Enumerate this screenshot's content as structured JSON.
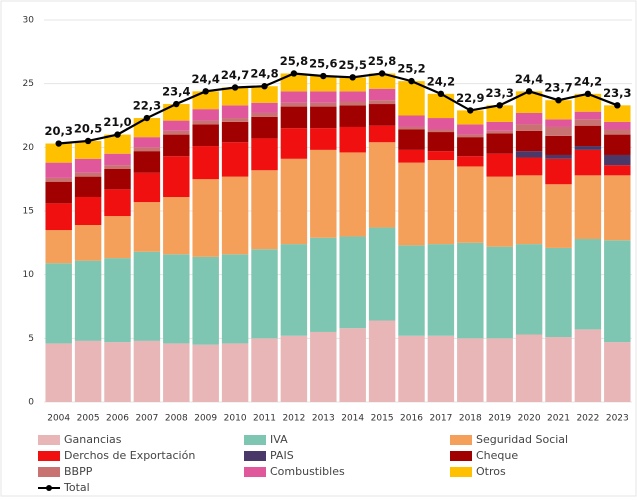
{
  "chart_data": {
    "type": "bar",
    "stacked": true,
    "categories": [
      "2004",
      "2005",
      "2006",
      "2007",
      "2008",
      "2009",
      "2010",
      "2011",
      "2012",
      "2013",
      "2014",
      "2015",
      "2016",
      "2017",
      "2018",
      "2019",
      "2020",
      "2021",
      "2022",
      "2023"
    ],
    "ylim": [
      0,
      30
    ],
    "yticks": [
      0,
      5,
      10,
      15,
      20,
      25,
      30
    ],
    "grid": true,
    "series": [
      {
        "name": "Ganancias",
        "color": "#e8b6b6",
        "values": [
          4.6,
          4.8,
          4.7,
          4.8,
          4.6,
          4.5,
          4.6,
          5.0,
          5.2,
          5.5,
          5.8,
          6.4,
          5.2,
          5.2,
          5.0,
          5.0,
          5.3,
          5.1,
          5.7,
          4.7
        ]
      },
      {
        "name": "IVA",
        "color": "#7fc6b2",
        "values": [
          6.3,
          6.3,
          6.6,
          7.0,
          7.0,
          6.9,
          7.0,
          7.0,
          7.2,
          7.4,
          7.2,
          7.3,
          7.1,
          7.2,
          7.5,
          7.2,
          7.1,
          7.0,
          7.1,
          8.0
        ]
      },
      {
        "name": "Seguridad Social",
        "color": "#f5a05a",
        "values": [
          2.6,
          2.8,
          3.3,
          3.9,
          4.5,
          6.1,
          6.1,
          6.2,
          6.7,
          6.9,
          6.6,
          6.7,
          6.5,
          6.6,
          6.0,
          5.5,
          5.4,
          5.0,
          5.0,
          5.1
        ]
      },
      {
        "name": "Derchos de Exportación",
        "color": "#f01010",
        "values": [
          2.1,
          2.2,
          2.1,
          2.3,
          3.2,
          2.6,
          2.7,
          2.5,
          2.4,
          1.7,
          2.0,
          1.3,
          1.0,
          0.7,
          0.8,
          1.8,
          1.4,
          2.0,
          2.0,
          0.8
        ]
      },
      {
        "name": "PAIS",
        "color": "#4a3868",
        "values": [
          0,
          0,
          0,
          0,
          0,
          0,
          0,
          0,
          0,
          0,
          0,
          0,
          0,
          0,
          0,
          0,
          0.5,
          0.3,
          0.3,
          0.8
        ]
      },
      {
        "name": "Cheque",
        "color": "#a00000",
        "values": [
          1.7,
          1.6,
          1.6,
          1.7,
          1.7,
          1.7,
          1.6,
          1.7,
          1.7,
          1.7,
          1.7,
          1.7,
          1.6,
          1.5,
          1.5,
          1.6,
          1.6,
          1.5,
          1.6,
          1.6
        ]
      },
      {
        "name": "BBPP",
        "color": "#c87272",
        "values": [
          0.3,
          0.3,
          0.3,
          0.3,
          0.3,
          0.3,
          0.3,
          0.3,
          0.3,
          0.3,
          0.3,
          0.3,
          0.2,
          0.2,
          0.2,
          0.2,
          0.5,
          0.7,
          0.5,
          0.4
        ]
      },
      {
        "name": "Combustibles",
        "color": "#e0579c",
        "values": [
          1.2,
          1.1,
          0.9,
          0.8,
          0.8,
          0.9,
          1.0,
          0.8,
          0.9,
          0.9,
          0.8,
          0.9,
          0.9,
          0.9,
          0.8,
          0.7,
          0.9,
          0.6,
          0.6,
          0.6
        ]
      },
      {
        "name": "Otros",
        "color": "#ffc000",
        "values": [
          1.5,
          1.4,
          1.5,
          1.5,
          1.3,
          1.4,
          1.4,
          1.3,
          1.4,
          1.2,
          1.1,
          1.2,
          2.7,
          1.9,
          1.1,
          1.3,
          1.7,
          1.5,
          1.4,
          1.3
        ]
      },
      {
        "name": "Total",
        "color": "#000000",
        "type": "line",
        "values": [
          20.3,
          20.5,
          21.0,
          22.3,
          23.4,
          24.4,
          24.7,
          24.8,
          25.8,
          25.6,
          25.5,
          25.8,
          25.2,
          24.2,
          22.9,
          23.3,
          24.4,
          23.7,
          24.2,
          23.3
        ],
        "value_labels": [
          "20,3",
          "20,5",
          "21,0",
          "22,3",
          "23,4",
          "24,4",
          "24,7",
          "24,8",
          "25,8",
          "25,6",
          "25,5",
          "25,8",
          "25,2",
          "24,2",
          "22,9",
          "23,3",
          "24,4",
          "23,7",
          "24,2",
          "23,3"
        ]
      }
    ]
  }
}
